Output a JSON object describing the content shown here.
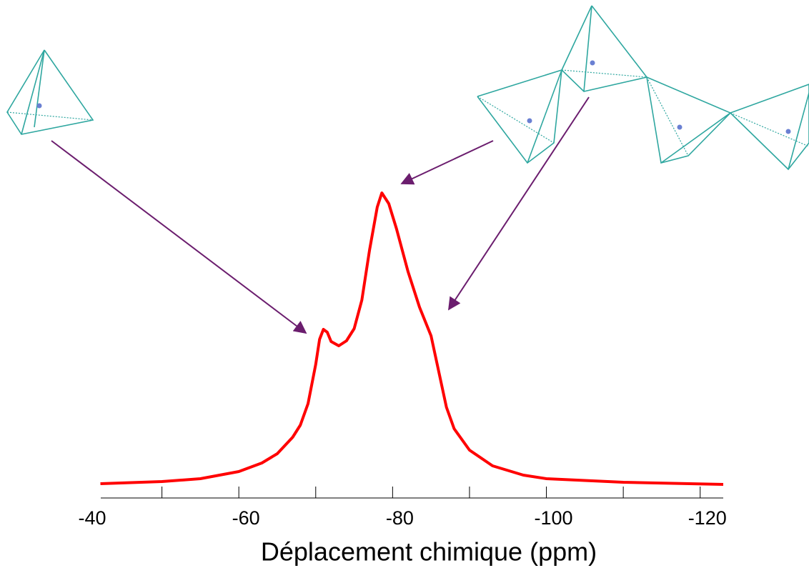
{
  "chart_data": {
    "type": "line",
    "x_label": "Déplacement chimique (ppm)",
    "xlim": [
      -40,
      -123
    ],
    "ylim": [
      0,
      110
    ],
    "xticks": [
      -40,
      -60,
      -80,
      -100,
      -120
    ],
    "xminor_ticks": [
      -50,
      -70,
      -90,
      -110
    ],
    "series": [
      {
        "color": "#ff0000",
        "x": [
          -42,
          -50,
          -55,
          -60,
          -63,
          -65,
          -67,
          -68,
          -69,
          -70,
          -70.5,
          -71,
          -71.5,
          -72,
          -73,
          -74,
          -75,
          -76,
          -77,
          -78,
          -78.6,
          -79.5,
          -80.5,
          -82,
          -83.5,
          -85,
          -86,
          -87,
          -88,
          -90,
          -93,
          -97,
          -100,
          -110,
          -123
        ],
        "values": [
          5,
          5.75,
          6.75,
          9.25,
          12.25,
          15.5,
          21.25,
          25.5,
          33,
          46.75,
          55.5,
          59,
          58,
          54.75,
          53.25,
          55,
          59.25,
          69.25,
          86.75,
          101.75,
          106.75,
          103,
          94.25,
          79.25,
          66.75,
          56.75,
          44.25,
          31.75,
          24.25,
          16.75,
          11.25,
          8,
          6.75,
          5.5,
          4.75
        ]
      }
    ]
  }
}
